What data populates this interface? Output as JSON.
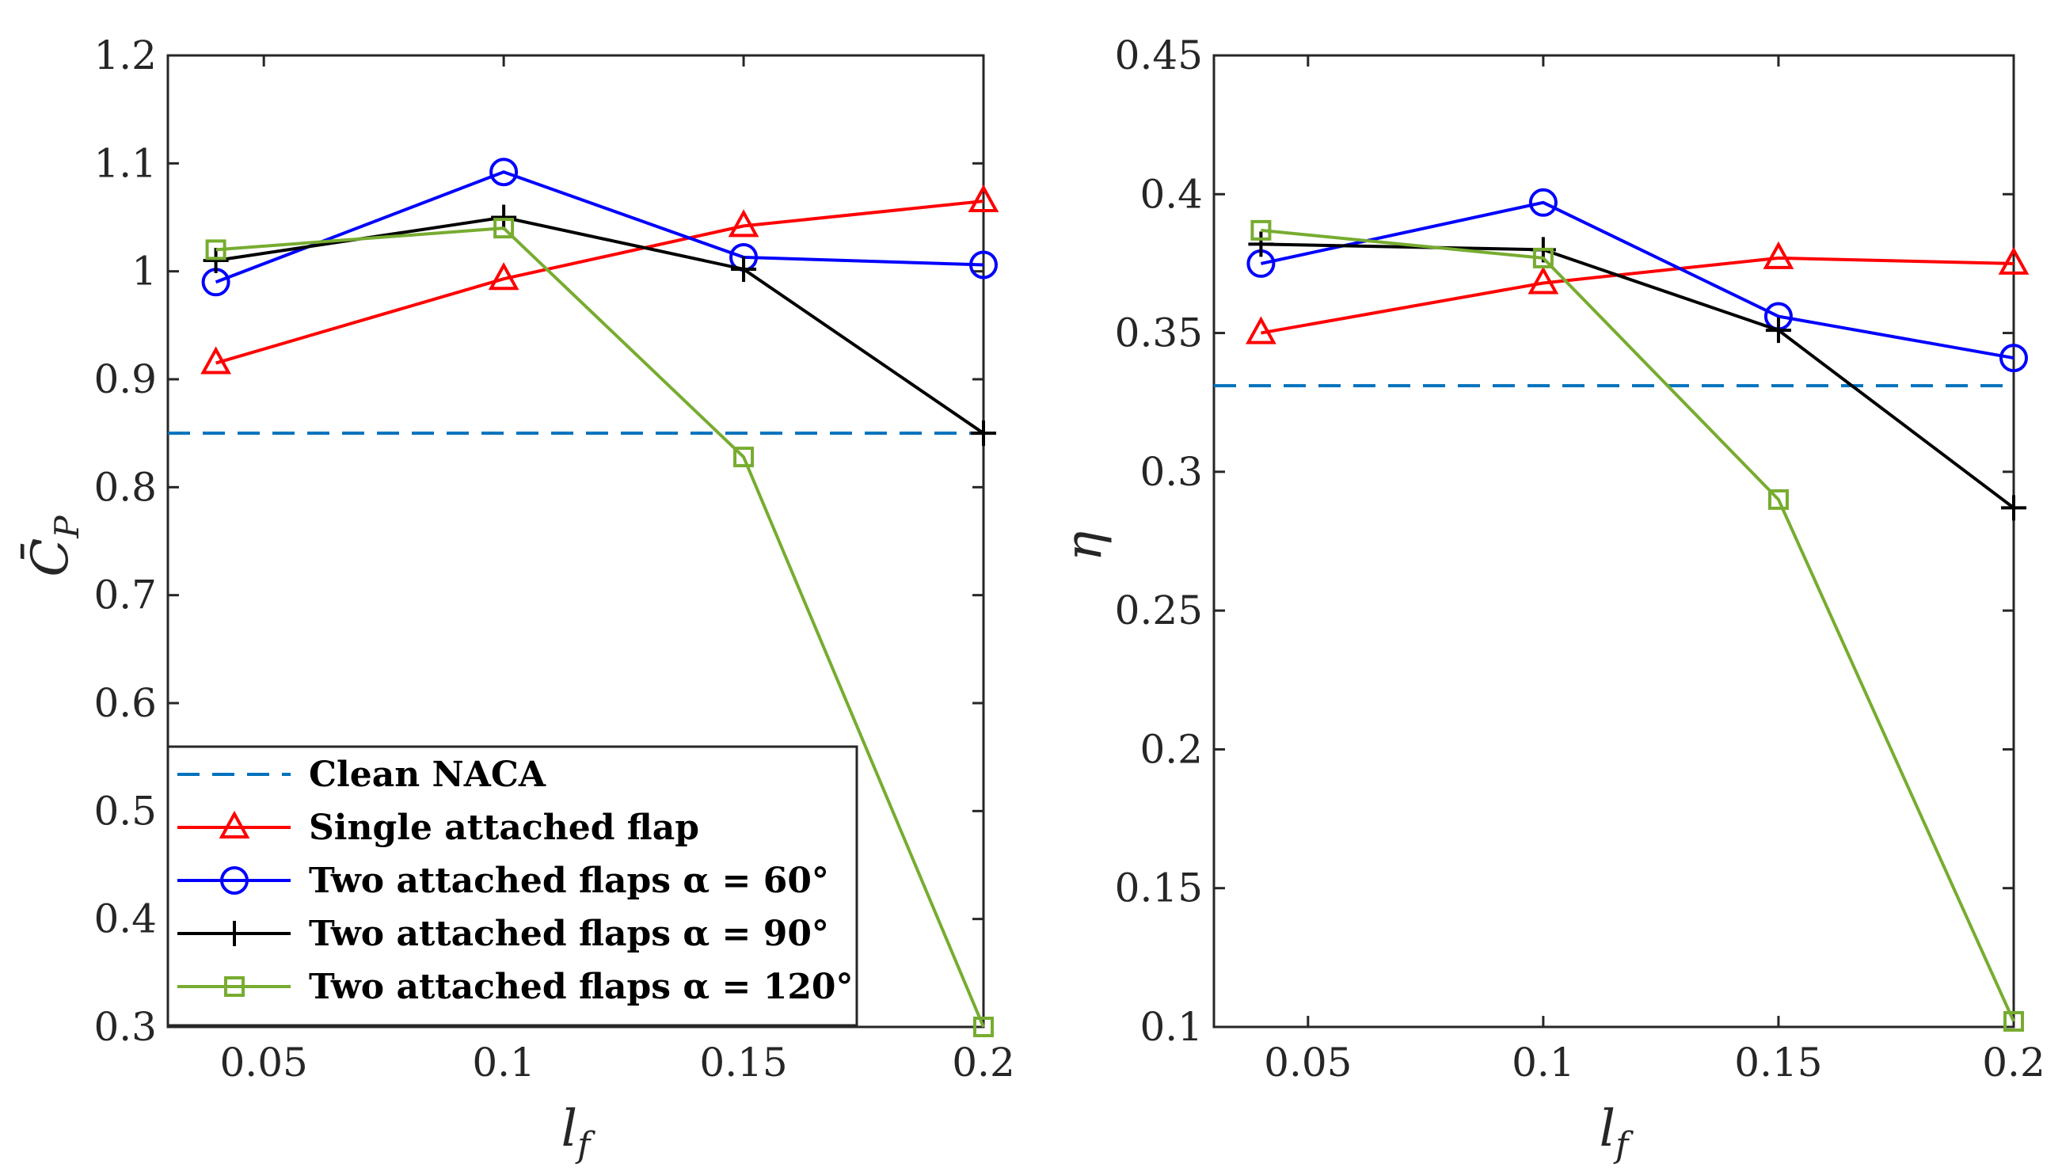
{
  "chart_data": [
    {
      "type": "line",
      "ylabel": "C̄P",
      "xlabel": "lf",
      "xlim": [
        0.03,
        0.2
      ],
      "ylim": [
        0.3,
        1.2
      ],
      "xticks": [
        "0.05",
        "0.1",
        "0.15",
        "0.2"
      ],
      "yticks": [
        "0.3",
        "0.4",
        "0.5",
        "0.6",
        "0.7",
        "0.8",
        "0.9",
        "1",
        "1.1",
        "1.2"
      ],
      "legend_position": "bottom-left",
      "series": [
        {
          "name": "Clean NACA",
          "style": "dashed",
          "color": "#0072BD",
          "marker": "none",
          "x": [
            0.03,
            0.2
          ],
          "y": [
            0.85,
            0.85
          ]
        },
        {
          "name": "Single attached flap",
          "color": "#FF0000",
          "marker": "triangle",
          "x": [
            0.04,
            0.1,
            0.15,
            0.2
          ],
          "y": [
            0.915,
            0.993,
            1.042,
            1.065
          ]
        },
        {
          "name": "Two attached flaps α = 60°",
          "color": "#0000FF",
          "marker": "circle",
          "x": [
            0.04,
            0.1,
            0.15,
            0.2
          ],
          "y": [
            0.99,
            1.092,
            1.013,
            1.006
          ]
        },
        {
          "name": "Two attached flaps α = 90°",
          "color": "#000000",
          "marker": "plus",
          "x": [
            0.04,
            0.1,
            0.15,
            0.2
          ],
          "y": [
            1.01,
            1.05,
            1.002,
            0.85
          ]
        },
        {
          "name": "Two attached flaps α = 120°",
          "color": "#77AC30",
          "marker": "square",
          "x": [
            0.04,
            0.1,
            0.15,
            0.2
          ],
          "y": [
            1.02,
            1.04,
            0.828,
            0.3
          ]
        }
      ]
    },
    {
      "type": "line",
      "ylabel": "η",
      "xlabel": "lf",
      "xlim": [
        0.03,
        0.2
      ],
      "ylim": [
        0.1,
        0.45
      ],
      "xticks": [
        "0.05",
        "0.1",
        "0.15",
        "0.2"
      ],
      "yticks": [
        "0.1",
        "0.15",
        "0.2",
        "0.25",
        "0.3",
        "0.35",
        "0.4",
        "0.45"
      ],
      "series": [
        {
          "name": "Clean NACA",
          "style": "dashed",
          "color": "#0072BD",
          "marker": "none",
          "x": [
            0.03,
            0.2
          ],
          "y": [
            0.331,
            0.331
          ]
        },
        {
          "name": "Single attached flap",
          "color": "#FF0000",
          "marker": "triangle",
          "x": [
            0.04,
            0.1,
            0.15,
            0.2
          ],
          "y": [
            0.35,
            0.368,
            0.377,
            0.375
          ]
        },
        {
          "name": "Two attached flaps α = 60°",
          "color": "#0000FF",
          "marker": "circle",
          "x": [
            0.04,
            0.1,
            0.15,
            0.2
          ],
          "y": [
            0.375,
            0.397,
            0.356,
            0.341
          ]
        },
        {
          "name": "Two attached flaps α = 90°",
          "color": "#000000",
          "marker": "plus",
          "x": [
            0.04,
            0.1,
            0.15,
            0.2
          ],
          "y": [
            0.382,
            0.38,
            0.351,
            0.287
          ]
        },
        {
          "name": "Two attached flaps α = 120°",
          "color": "#77AC30",
          "marker": "square",
          "x": [
            0.04,
            0.1,
            0.15,
            0.2
          ],
          "y": [
            0.387,
            0.377,
            0.29,
            0.102
          ]
        }
      ]
    }
  ]
}
